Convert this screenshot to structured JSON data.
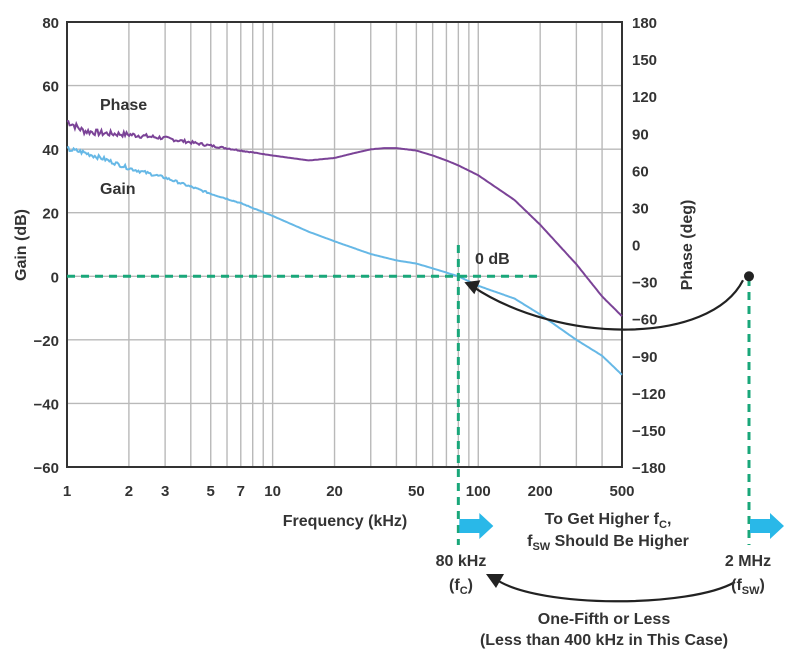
{
  "chart_data": {
    "type": "line",
    "xlabel": "Frequency (kHz)",
    "ylabel_left": "Gain (dB)",
    "ylabel_right": "Phase (deg)",
    "x_scale": "log",
    "xlim": [
      1,
      500
    ],
    "ylim_left": [
      -60,
      80
    ],
    "ylim_right": [
      -180,
      180
    ],
    "x_ticks": [
      1,
      2,
      3,
      5,
      7,
      10,
      20,
      50,
      100,
      200,
      500
    ],
    "x_tick_labels": [
      "1",
      "2",
      "3",
      "5",
      "7",
      "10",
      "20",
      "50",
      "100",
      "200",
      "500"
    ],
    "y_ticks_left": [
      80,
      60,
      40,
      20,
      0,
      -20,
      -40,
      -60
    ],
    "y_tick_labels_left": [
      "80",
      "60",
      "40",
      "20",
      "0",
      "−20",
      "−40",
      "−60"
    ],
    "y_ticks_right": [
      180,
      150,
      120,
      90,
      60,
      30,
      0,
      -30,
      -60,
      -90,
      -120,
      -150,
      -180
    ],
    "y_tick_labels_right": [
      "180",
      "150",
      "120",
      "90",
      "60",
      "30",
      "0",
      "−30",
      "−60",
      "−90",
      "−120",
      "−150",
      "−180"
    ],
    "grid": true,
    "series": [
      {
        "name": "Phase",
        "axis": "right",
        "color": "#7b4397",
        "x": [
          1,
          1.2,
          1.5,
          2,
          3,
          5,
          7,
          10,
          15,
          20,
          25,
          30,
          35,
          40,
          50,
          60,
          70,
          80,
          100,
          150,
          200,
          300,
          400,
          500
        ],
        "y": [
          100,
          92,
          90,
          89,
          86,
          80,
          76,
          72,
          68,
          70,
          74,
          77,
          78,
          78,
          76,
          72,
          68,
          64,
          56,
          36,
          16,
          -16,
          -42,
          -58
        ]
      },
      {
        "name": "Gain",
        "axis": "left",
        "color": "#66b8e6",
        "x": [
          1,
          1.2,
          1.5,
          2,
          3,
          5,
          7,
          10,
          15,
          20,
          30,
          40,
          50,
          60,
          80,
          100,
          150,
          200,
          300,
          400,
          500
        ],
        "y": [
          40,
          39,
          37,
          34,
          31,
          26,
          23,
          19,
          14,
          11,
          7,
          5,
          4,
          2.5,
          0,
          -3,
          -7,
          -12,
          -20,
          -25,
          -31
        ]
      }
    ],
    "markers": {
      "zero_db_label": "0 dB",
      "fc_label_line1": "80 kHz",
      "fc_label_line2": "(f",
      "fc_label_sub": "C",
      "fsw_label_line1": "2 MHz",
      "fsw_label_line2": "(f",
      "fsw_label_sub": "SW",
      "arrow_text_line1": "To Get Higher f",
      "arrow_text_line1_sub": "C",
      "arrow_text_line2": "f",
      "arrow_text_line2_sub": "SW",
      "arrow_text_line2_rest": " Should Be Higher",
      "bottom_text_line1": "One-Fifth or Less",
      "bottom_text_line2": "(Less than 400 kHz in This Case)",
      "dash_color": "#1aa77a",
      "arrow_color": "#29b8e8"
    }
  }
}
